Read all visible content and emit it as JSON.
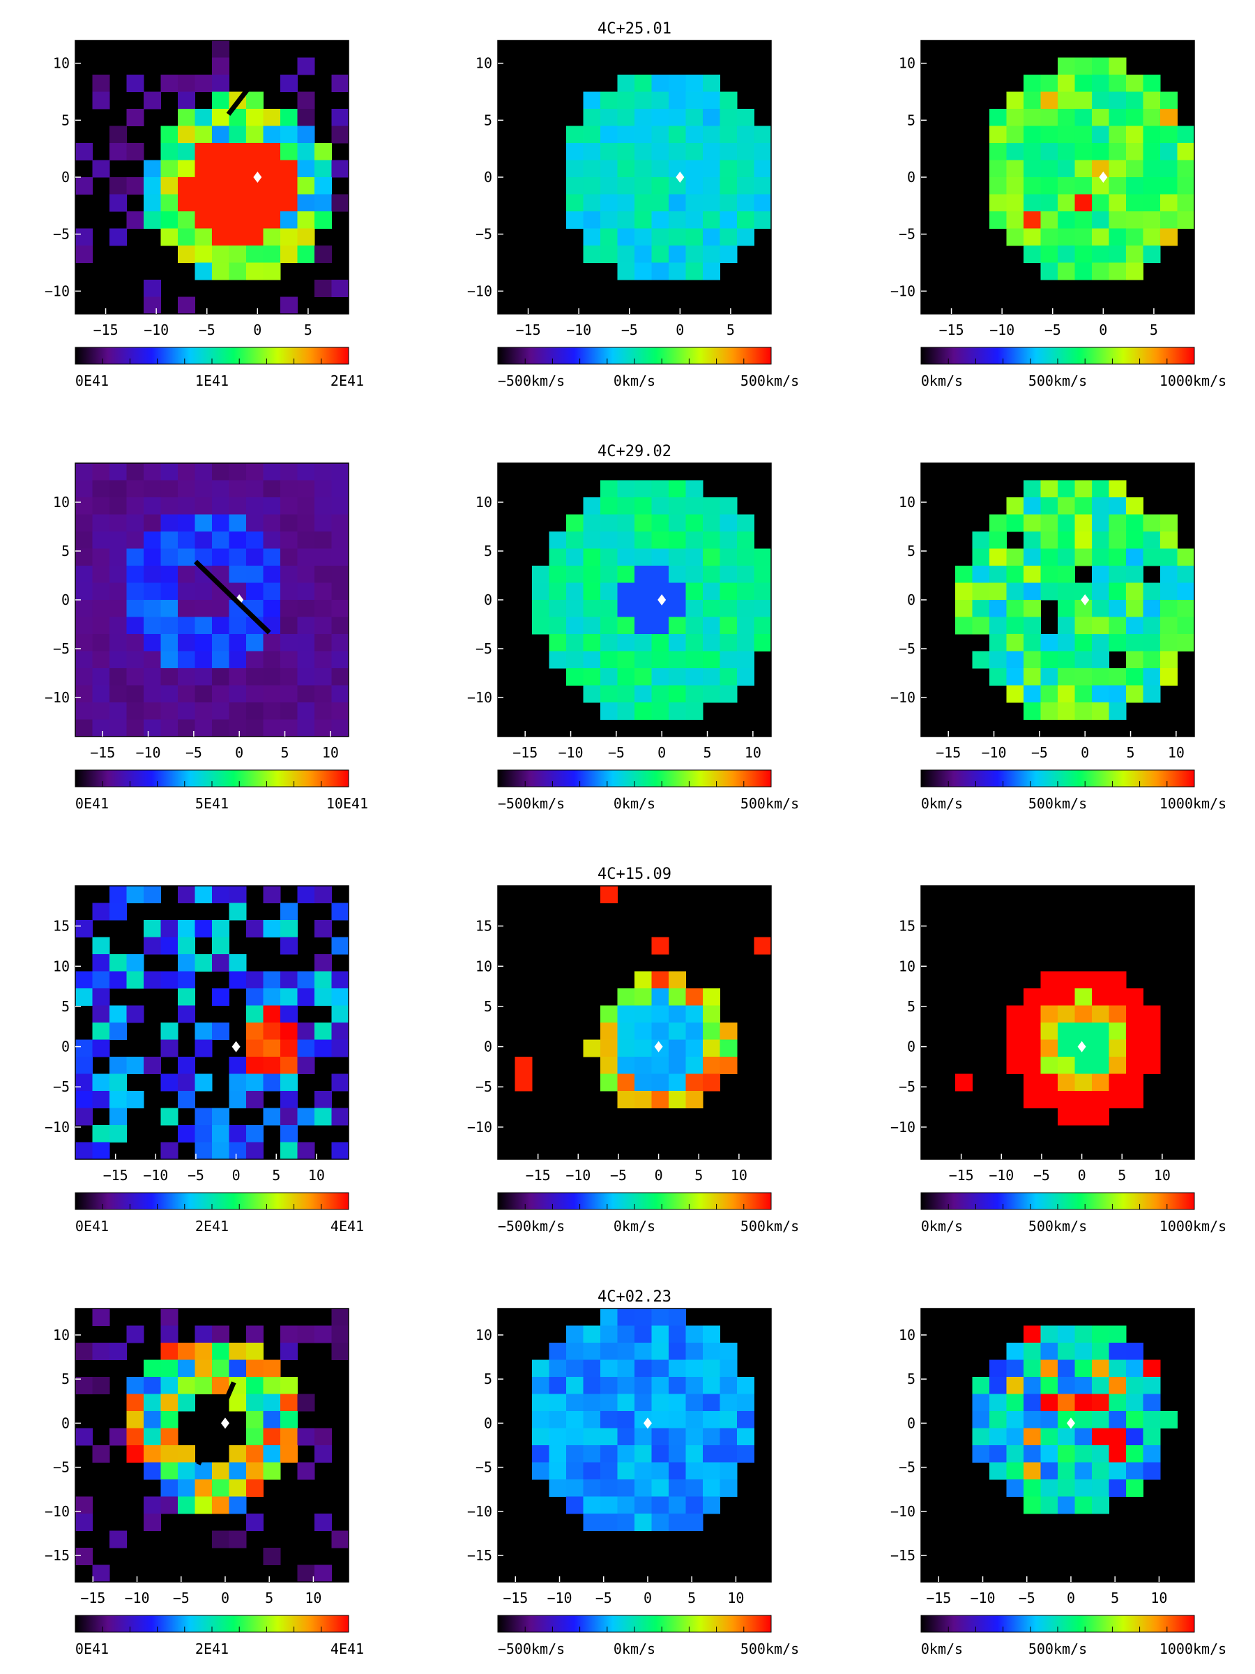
{
  "figure": {
    "rows": [
      {
        "title": "4C+25.01",
        "xticks": [
          "−15",
          "−10",
          "−5",
          "0",
          "5"
        ],
        "yticks": [
          "10",
          "5",
          "0",
          "−5",
          "−10"
        ],
        "xlim": [
          -18,
          9
        ],
        "ylim": [
          -12,
          12
        ],
        "colorbars": [
          {
            "labels": [
              "0E41",
              "1E41",
              "2E41"
            ]
          },
          {
            "labels": [
              "−500km/s",
              "0km/s",
              "500km/s"
            ]
          },
          {
            "labels": [
              "0km/s",
              "500km/s",
              "1000km/s"
            ]
          }
        ]
      },
      {
        "title": "4C+29.02",
        "xticks": [
          "−15",
          "−10",
          "−5",
          "0",
          "5",
          "10"
        ],
        "yticks": [
          "10",
          "5",
          "0",
          "−5",
          "−10"
        ],
        "xlim": [
          -18,
          12
        ],
        "ylim": [
          -14,
          14
        ],
        "colorbars": [
          {
            "labels": [
              "0E41",
              "5E41",
              "10E41"
            ]
          },
          {
            "labels": [
              "−500km/s",
              "0km/s",
              "500km/s"
            ]
          },
          {
            "labels": [
              "0km/s",
              "500km/s",
              "1000km/s"
            ]
          }
        ]
      },
      {
        "title": "4C+15.09",
        "xticks": [
          "−15",
          "−10",
          "−5",
          "0",
          "5",
          "10"
        ],
        "yticks": [
          "15",
          "10",
          "5",
          "0",
          "−5",
          "−10"
        ],
        "xlim": [
          -20,
          14
        ],
        "ylim": [
          -14,
          20
        ],
        "colorbars": [
          {
            "labels": [
              "0E41",
              "2E41",
              "4E41"
            ]
          },
          {
            "labels": [
              "−500km/s",
              "0km/s",
              "500km/s"
            ]
          },
          {
            "labels": [
              "0km/s",
              "500km/s",
              "1000km/s"
            ]
          }
        ]
      },
      {
        "title": "4C+02.23",
        "xticks": [
          "−15",
          "−10",
          "−5",
          "0",
          "5",
          "10"
        ],
        "yticks": [
          "10",
          "5",
          "0",
          "−5",
          "−10",
          "−15"
        ],
        "xlim": [
          -17,
          14
        ],
        "ylim": [
          -18,
          13
        ],
        "colorbars": [
          {
            "labels": [
              "0E41",
              "2E41",
              "4E41"
            ]
          },
          {
            "labels": [
              "−500km/s",
              "0km/s",
              "500km/s"
            ]
          },
          {
            "labels": [
              "0km/s",
              "500km/s",
              "1000km/s"
            ]
          }
        ]
      }
    ]
  },
  "chart_data": [
    {
      "type": "heatmap",
      "title": "4C+25.01",
      "colormap": "rainbow",
      "panels": [
        {
          "quantity": "flux",
          "colorbar_range": [
            "0E41",
            "2E41"
          ],
          "gradient_line": true
        },
        {
          "quantity": "velocity",
          "colorbar_range": [
            "−500km/s",
            "500km/s"
          ]
        },
        {
          "quantity": "velocity dispersion",
          "colorbar_range": [
            "0km/s",
            "1000km/s"
          ]
        }
      ],
      "xlim": [
        -18,
        9
      ],
      "ylim": [
        -12,
        12
      ],
      "grid": false
    },
    {
      "type": "heatmap",
      "title": "4C+29.02",
      "colormap": "rainbow",
      "panels": [
        {
          "quantity": "flux",
          "colorbar_range": [
            "0E41",
            "10E41"
          ],
          "gradient_line": true
        },
        {
          "quantity": "velocity",
          "colorbar_range": [
            "−500km/s",
            "500km/s"
          ]
        },
        {
          "quantity": "velocity dispersion",
          "colorbar_range": [
            "0km/s",
            "1000km/s"
          ]
        }
      ],
      "xlim": [
        -18,
        12
      ],
      "ylim": [
        -14,
        14
      ],
      "grid": false
    },
    {
      "type": "heatmap",
      "title": "4C+15.09",
      "colormap": "rainbow",
      "panels": [
        {
          "quantity": "flux",
          "colorbar_range": [
            "0E41",
            "4E41"
          ],
          "gradient_line": false
        },
        {
          "quantity": "velocity",
          "colorbar_range": [
            "−500km/s",
            "500km/s"
          ]
        },
        {
          "quantity": "velocity dispersion",
          "colorbar_range": [
            "0km/s",
            "1000km/s"
          ]
        }
      ],
      "xlim": [
        -20,
        14
      ],
      "ylim": [
        -14,
        20
      ],
      "grid": false
    },
    {
      "type": "heatmap",
      "title": "4C+02.23",
      "colormap": "rainbow",
      "panels": [
        {
          "quantity": "flux",
          "colorbar_range": [
            "0E41",
            "4E41"
          ],
          "gradient_line": true
        },
        {
          "quantity": "velocity",
          "colorbar_range": [
            "−500km/s",
            "500km/s"
          ]
        },
        {
          "quantity": "velocity dispersion",
          "colorbar_range": [
            "0km/s",
            "1000km/s"
          ]
        }
      ],
      "xlim": [
        -17,
        14
      ],
      "ylim": [
        -18,
        13
      ],
      "grid": false
    }
  ]
}
